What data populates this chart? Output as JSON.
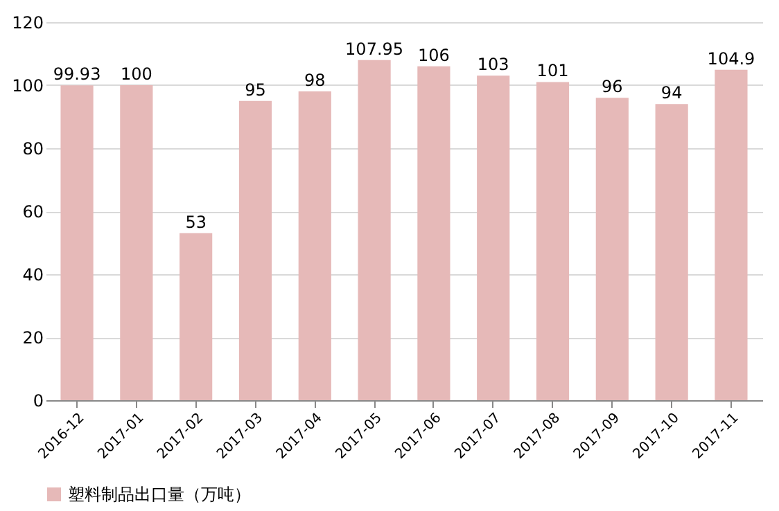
{
  "chart_data": {
    "type": "bar",
    "categories": [
      "2016-12",
      "2017-01",
      "2017-02",
      "2017-03",
      "2017-04",
      "2017-05",
      "2017-06",
      "2017-07",
      "2017-08",
      "2017-09",
      "2017-10",
      "2017-11"
    ],
    "series": [
      {
        "name": "塑料制品出口量（万吨）",
        "color": "#e6b9b8",
        "values": [
          99.93,
          100,
          53,
          95,
          98,
          107.95,
          106,
          103,
          101,
          96,
          94,
          104.9
        ]
      }
    ],
    "ylim": [
      0,
      120
    ],
    "yticks": [
      0,
      20,
      40,
      60,
      80,
      100,
      120
    ],
    "grid": "y",
    "legend": "bottom",
    "data_labels": true
  }
}
